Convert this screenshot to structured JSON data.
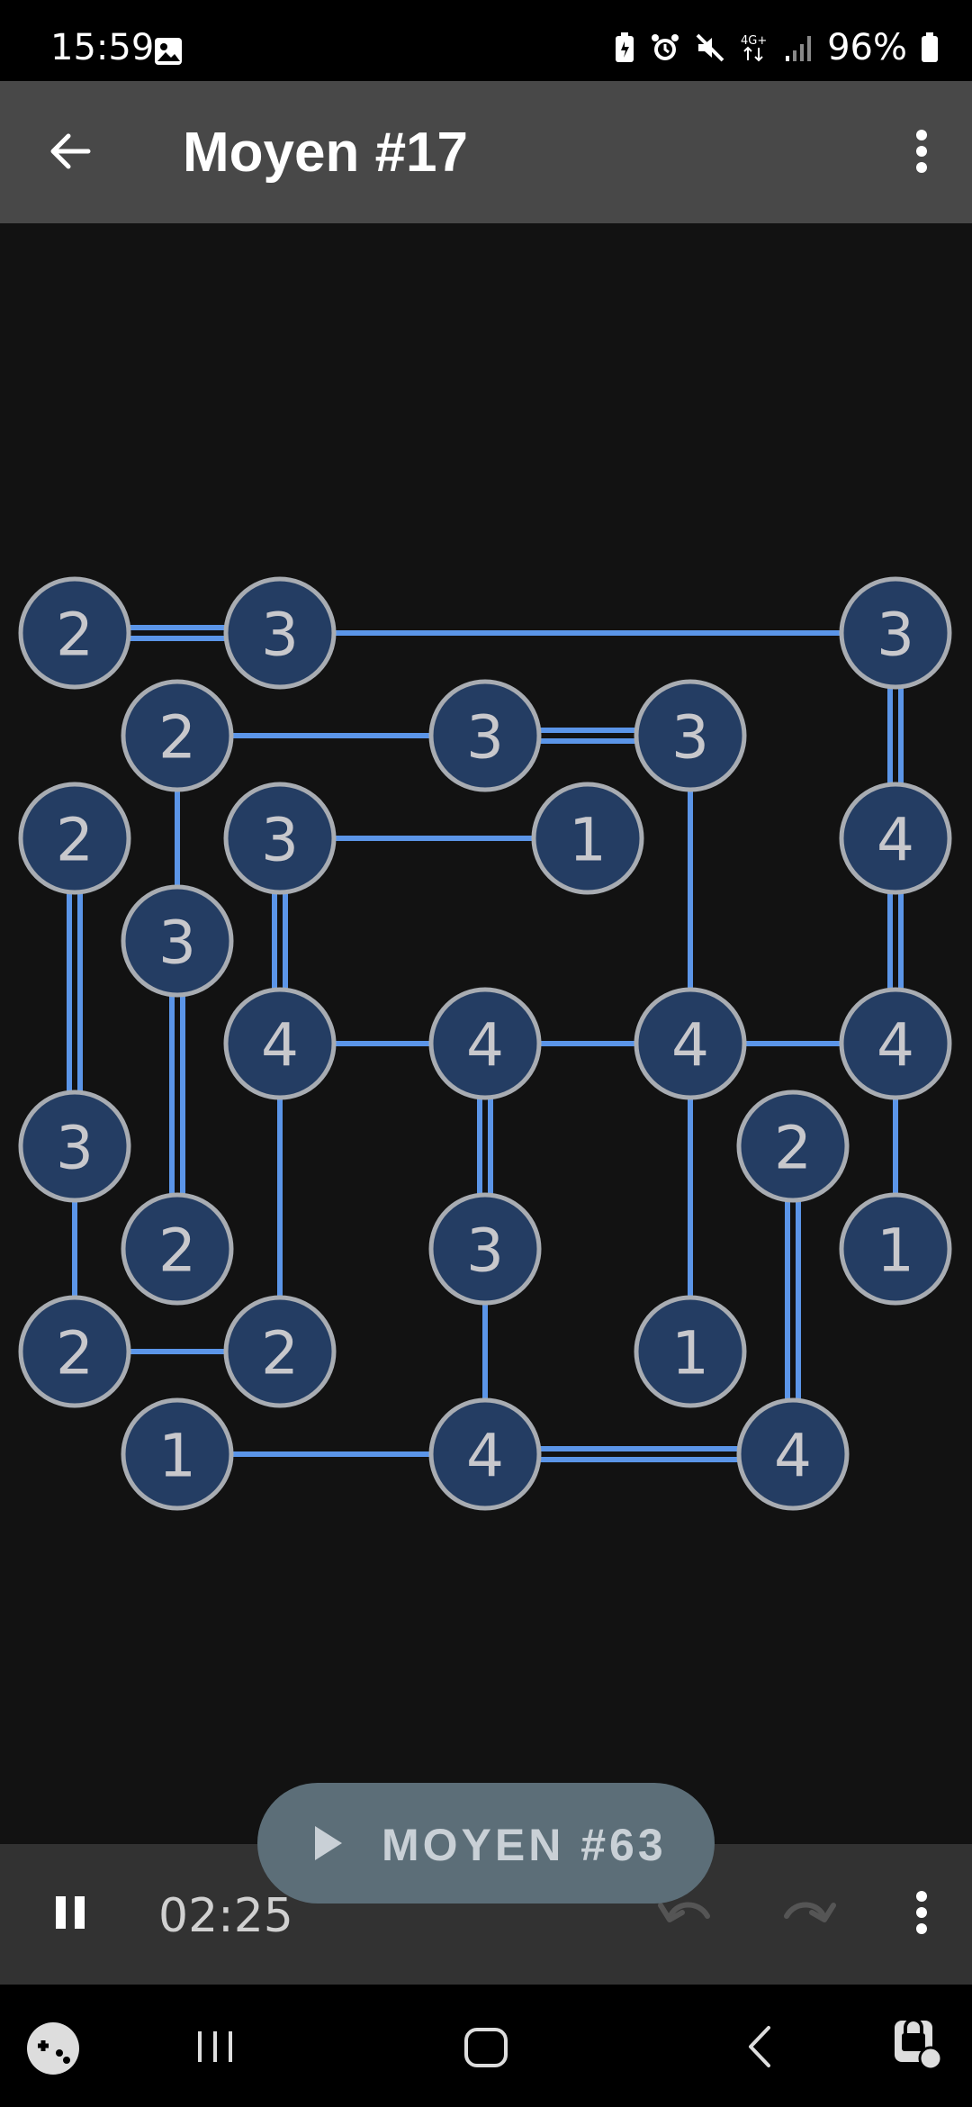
{
  "status_bar": {
    "time": "15:59",
    "battery": "96%",
    "icons": [
      "image-icon",
      "battery-saver-icon",
      "alarm-icon",
      "mute-icon",
      "4g-icon",
      "signal-icon",
      "battery-icon"
    ]
  },
  "app_bar": {
    "title": "Moyen #17",
    "back_icon": "back-arrow-icon",
    "menu_icon": "more-vert-icon"
  },
  "puzzle": {
    "colors": {
      "island_fill": "#243d63",
      "island_border": "#a8acb2",
      "bridge": "#5b95e8",
      "label": "#c8c8cc"
    },
    "islands": [
      {
        "id": "a",
        "col": 0,
        "row": 0,
        "value": "2"
      },
      {
        "id": "b",
        "col": 2,
        "row": 0,
        "value": "3"
      },
      {
        "id": "c",
        "col": 8,
        "row": 0,
        "value": "3"
      },
      {
        "id": "d",
        "col": 1,
        "row": 1,
        "value": "2"
      },
      {
        "id": "e",
        "col": 4,
        "row": 1,
        "value": "3"
      },
      {
        "id": "f",
        "col": 6,
        "row": 1,
        "value": "3"
      },
      {
        "id": "g",
        "col": 0,
        "row": 2,
        "value": "2"
      },
      {
        "id": "h",
        "col": 2,
        "row": 2,
        "value": "3"
      },
      {
        "id": "i",
        "col": 5,
        "row": 2,
        "value": "1"
      },
      {
        "id": "j",
        "col": 8,
        "row": 2,
        "value": "4"
      },
      {
        "id": "k",
        "col": 1,
        "row": 3,
        "value": "3"
      },
      {
        "id": "l",
        "col": 2,
        "row": 4,
        "value": "4"
      },
      {
        "id": "m",
        "col": 4,
        "row": 4,
        "value": "4"
      },
      {
        "id": "n",
        "col": 6,
        "row": 4,
        "value": "4"
      },
      {
        "id": "o",
        "col": 8,
        "row": 4,
        "value": "4"
      },
      {
        "id": "p",
        "col": 0,
        "row": 5,
        "value": "3"
      },
      {
        "id": "q",
        "col": 7,
        "row": 5,
        "value": "2"
      },
      {
        "id": "r",
        "col": 1,
        "row": 6,
        "value": "2"
      },
      {
        "id": "s",
        "col": 4,
        "row": 6,
        "value": "3"
      },
      {
        "id": "t",
        "col": 8,
        "row": 6,
        "value": "1"
      },
      {
        "id": "u",
        "col": 0,
        "row": 7,
        "value": "2"
      },
      {
        "id": "v",
        "col": 2,
        "row": 7,
        "value": "2"
      },
      {
        "id": "w",
        "col": 6,
        "row": 7,
        "value": "1"
      },
      {
        "id": "x",
        "col": 1,
        "row": 8,
        "value": "1"
      },
      {
        "id": "y",
        "col": 4,
        "row": 8,
        "value": "4"
      },
      {
        "id": "z",
        "col": 7,
        "row": 8,
        "value": "4"
      }
    ],
    "bridges": [
      {
        "from": "a",
        "to": "b",
        "count": 2
      },
      {
        "from": "b",
        "to": "c",
        "count": 1
      },
      {
        "from": "c",
        "to": "j",
        "count": 2
      },
      {
        "from": "j",
        "to": "o",
        "count": 2
      },
      {
        "from": "o",
        "to": "t",
        "count": 1
      },
      {
        "from": "d",
        "to": "e",
        "count": 1
      },
      {
        "from": "e",
        "to": "f",
        "count": 2
      },
      {
        "from": "f",
        "to": "n",
        "count": 1
      },
      {
        "from": "d",
        "to": "k",
        "count": 1
      },
      {
        "from": "k",
        "to": "r",
        "count": 2
      },
      {
        "from": "g",
        "to": "p",
        "count": 2
      },
      {
        "from": "p",
        "to": "u",
        "count": 1
      },
      {
        "from": "u",
        "to": "v",
        "count": 1
      },
      {
        "from": "h",
        "to": "i",
        "count": 1
      },
      {
        "from": "h",
        "to": "l",
        "count": 2
      },
      {
        "from": "l",
        "to": "v",
        "count": 1
      },
      {
        "from": "l",
        "to": "m",
        "count": 1
      },
      {
        "from": "m",
        "to": "n",
        "count": 1
      },
      {
        "from": "n",
        "to": "o",
        "count": 1
      },
      {
        "from": "m",
        "to": "s",
        "count": 2
      },
      {
        "from": "s",
        "to": "y",
        "count": 1
      },
      {
        "from": "n",
        "to": "w",
        "count": 1
      },
      {
        "from": "q",
        "to": "z",
        "count": 2
      },
      {
        "from": "x",
        "to": "y",
        "count": 1
      },
      {
        "from": "y",
        "to": "z",
        "count": 2
      }
    ]
  },
  "bottom_bar": {
    "timer": "02:25",
    "pause_icon": "pause-icon",
    "undo_icon": "undo-icon",
    "redo_icon": "redo-icon",
    "menu_icon": "more-vert-icon"
  },
  "next_button": {
    "label": "MOYEN #63",
    "icon": "play-icon"
  },
  "nav_bar": {
    "icons": [
      "game-launcher-icon",
      "recents-icon",
      "home-icon",
      "back-icon",
      "accessibility-icon"
    ]
  }
}
